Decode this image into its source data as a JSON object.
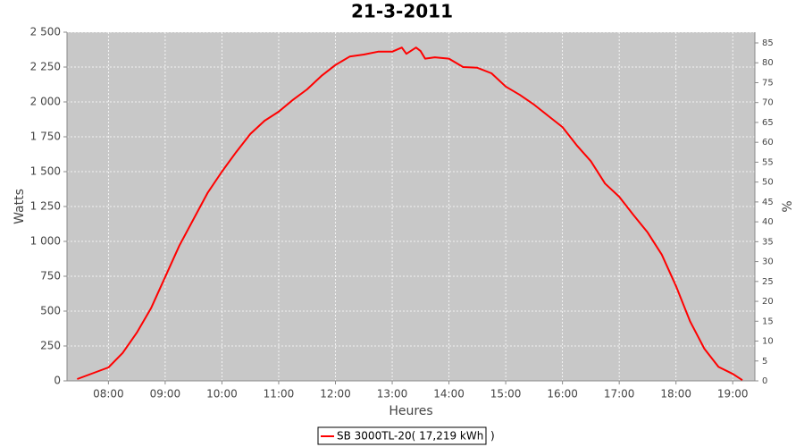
{
  "chart_data": {
    "type": "line",
    "title": "21-3-2011",
    "x_label": "Heures",
    "y_label": "Watts",
    "y2_label": "%",
    "x": [
      7.45,
      8,
      8.25,
      8.5,
      8.75,
      9,
      9.25,
      9.5,
      9.75,
      10,
      10.25,
      10.5,
      10.75,
      11,
      11.25,
      11.5,
      11.75,
      12,
      12.25,
      12.5,
      12.75,
      13,
      13.17,
      13.25,
      13.42,
      13.5,
      13.58,
      13.75,
      14,
      14.25,
      14.5,
      14.75,
      15,
      15.25,
      15.5,
      15.75,
      16,
      16.25,
      16.5,
      16.75,
      17,
      17.25,
      17.5,
      17.75,
      18,
      18.25,
      18.5,
      18.75,
      19,
      19.17
    ],
    "series": [
      {
        "name": "SB 3000TL-20( 17,219 kWh  )",
        "color": "#ff0000",
        "values": [
          13,
          96,
          200,
          345,
          520,
          745,
          970,
          1160,
          1350,
          1500,
          1640,
          1770,
          1865,
          1930,
          2015,
          2090,
          2185,
          2265,
          2325,
          2340,
          2360,
          2360,
          2390,
          2345,
          2390,
          2365,
          2310,
          2320,
          2310,
          2250,
          2245,
          2205,
          2110,
          2050,
          1980,
          1900,
          1820,
          1690,
          1575,
          1415,
          1320,
          1190,
          1065,
          905,
          680,
          425,
          230,
          100,
          50,
          5
        ]
      }
    ],
    "xlim": [
      7.27,
      19.39
    ],
    "xticks": [
      {
        "value": 8,
        "label": "08:00"
      },
      {
        "value": 9,
        "label": "09:00"
      },
      {
        "value": 10,
        "label": "10:00"
      },
      {
        "value": 11,
        "label": "11:00"
      },
      {
        "value": 12,
        "label": "12:00"
      },
      {
        "value": 13,
        "label": "13:00"
      },
      {
        "value": 14,
        "label": "14:00"
      },
      {
        "value": 15,
        "label": "15:00"
      },
      {
        "value": 16,
        "label": "16:00"
      },
      {
        "value": 17,
        "label": "17:00"
      },
      {
        "value": 18,
        "label": "18:00"
      },
      {
        "value": 19,
        "label": "19:00"
      }
    ],
    "ylim": [
      0,
      2500
    ],
    "yticks": [
      0,
      250,
      500,
      750,
      {
        "value": 1000,
        "label": "1 000"
      },
      {
        "value": 1250,
        "label": "1 250"
      },
      {
        "value": 1500,
        "label": "1 500"
      },
      {
        "value": 1750,
        "label": "1 750"
      },
      {
        "value": 2000,
        "label": "2 000"
      },
      {
        "value": 2250,
        "label": "2 250"
      },
      {
        "value": 2500,
        "label": "2 500"
      }
    ],
    "y2lim": [
      0,
      87.7
    ],
    "y2ticks": [
      0,
      5,
      10,
      15,
      20,
      25,
      30,
      35,
      40,
      45,
      50,
      55,
      60,
      65,
      70,
      75,
      80,
      85
    ],
    "grid": true,
    "legend": "bottom"
  }
}
